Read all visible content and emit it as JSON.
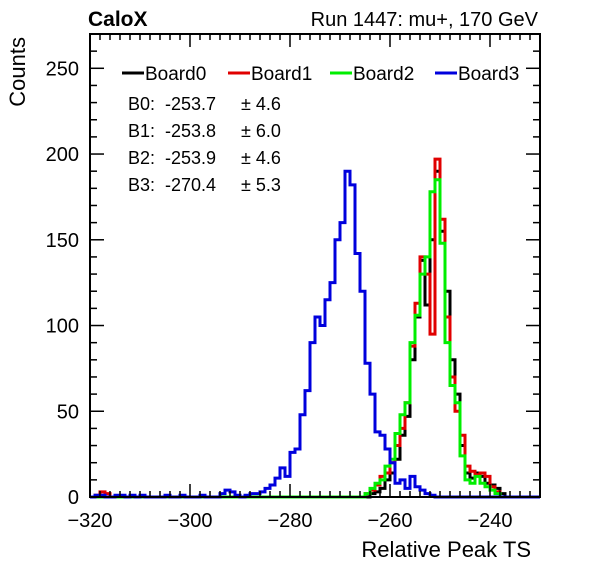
{
  "header": {
    "left_label": "CaloX",
    "right_label": "Run 1447: mu+, 170 GeV"
  },
  "chart_data": {
    "type": "line",
    "style": "step-histogram",
    "title": "",
    "xlabel": "Relative Peak TS",
    "ylabel": "Counts",
    "xlim": [
      -320,
      -230
    ],
    "ylim": [
      0,
      270
    ],
    "x_ticks": [
      -320,
      -300,
      -280,
      -260,
      -240
    ],
    "y_ticks": [
      0,
      50,
      100,
      150,
      200,
      250
    ],
    "grid": false,
    "legend_position": "top",
    "bin_width": 1,
    "series": [
      {
        "name": "Board0",
        "color": "#000000",
        "bins": [
          [
            -264,
            2
          ],
          [
            -263,
            3
          ],
          [
            -262,
            5
          ],
          [
            -261,
            10
          ],
          [
            -260,
            14
          ],
          [
            -259,
            22
          ],
          [
            -258,
            36
          ],
          [
            -257,
            47
          ],
          [
            -256,
            80
          ],
          [
            -255,
            105
          ],
          [
            -254,
            138
          ],
          [
            -253,
            112
          ],
          [
            -252,
            150
          ],
          [
            -251,
            190
          ],
          [
            -250,
            155
          ],
          [
            -249,
            120
          ],
          [
            -248,
            80
          ],
          [
            -247,
            60
          ],
          [
            -246,
            30
          ],
          [
            -245,
            14
          ],
          [
            -244,
            11
          ],
          [
            -243,
            14
          ],
          [
            -242,
            12
          ],
          [
            -241,
            8
          ],
          [
            -240,
            7
          ],
          [
            -239,
            5
          ],
          [
            -238,
            2
          ]
        ]
      },
      {
        "name": "Board1",
        "color": "#e00000",
        "bins": [
          [
            -319,
            1
          ],
          [
            -318,
            3
          ],
          [
            -317,
            2
          ],
          [
            -265,
            2
          ],
          [
            -264,
            4
          ],
          [
            -263,
            7
          ],
          [
            -262,
            12
          ],
          [
            -261,
            14
          ],
          [
            -260,
            20
          ],
          [
            -259,
            30
          ],
          [
            -258,
            40
          ],
          [
            -257,
            55
          ],
          [
            -256,
            88
          ],
          [
            -255,
            113
          ],
          [
            -254,
            140
          ],
          [
            -253,
            130
          ],
          [
            -252,
            95
          ],
          [
            -251,
            197
          ],
          [
            -250,
            162
          ],
          [
            -249,
            105
          ],
          [
            -248,
            70
          ],
          [
            -247,
            50
          ],
          [
            -246,
            36
          ],
          [
            -245,
            18
          ],
          [
            -244,
            15
          ],
          [
            -243,
            13
          ],
          [
            -242,
            14
          ],
          [
            -241,
            12
          ],
          [
            -240,
            6
          ],
          [
            -239,
            3
          ]
        ]
      },
      {
        "name": "Board2",
        "color": "#00ee00",
        "bins": [
          [
            -265,
            2
          ],
          [
            -264,
            5
          ],
          [
            -263,
            8
          ],
          [
            -262,
            10
          ],
          [
            -261,
            18
          ],
          [
            -260,
            22
          ],
          [
            -259,
            37
          ],
          [
            -258,
            48
          ],
          [
            -257,
            55
          ],
          [
            -256,
            90
          ],
          [
            -255,
            106
          ],
          [
            -254,
            130
          ],
          [
            -253,
            140
          ],
          [
            -252,
            178
          ],
          [
            -251,
            185
          ],
          [
            -250,
            148
          ],
          [
            -249,
            90
          ],
          [
            -248,
            65
          ],
          [
            -247,
            55
          ],
          [
            -246,
            24
          ],
          [
            -245,
            10
          ],
          [
            -244,
            8
          ],
          [
            -243,
            12
          ],
          [
            -242,
            8
          ],
          [
            -241,
            6
          ],
          [
            -240,
            4
          ],
          [
            -239,
            2
          ]
        ]
      },
      {
        "name": "Board3",
        "color": "#0000dd",
        "bins": [
          [
            -319,
            1
          ],
          [
            -318,
            1
          ],
          [
            -315,
            1
          ],
          [
            -314,
            1
          ],
          [
            -312,
            1
          ],
          [
            -310,
            1
          ],
          [
            -305,
            1
          ],
          [
            -302,
            1
          ],
          [
            -298,
            1
          ],
          [
            -294,
            2
          ],
          [
            -293,
            4
          ],
          [
            -292,
            3
          ],
          [
            -291,
            1
          ],
          [
            -289,
            1
          ],
          [
            -288,
            2
          ],
          [
            -287,
            2
          ],
          [
            -286,
            3
          ],
          [
            -285,
            5
          ],
          [
            -284,
            7
          ],
          [
            -283,
            11
          ],
          [
            -282,
            17
          ],
          [
            -281,
            12
          ],
          [
            -280,
            26
          ],
          [
            -279,
            28
          ],
          [
            -278,
            48
          ],
          [
            -277,
            62
          ],
          [
            -276,
            90
          ],
          [
            -275,
            105
          ],
          [
            -274,
            100
          ],
          [
            -273,
            115
          ],
          [
            -272,
            125
          ],
          [
            -271,
            150
          ],
          [
            -270,
            160
          ],
          [
            -269,
            190
          ],
          [
            -268,
            182
          ],
          [
            -267,
            142
          ],
          [
            -266,
            120
          ],
          [
            -265,
            78
          ],
          [
            -264,
            60
          ],
          [
            -263,
            38
          ],
          [
            -262,
            36
          ],
          [
            -261,
            28
          ],
          [
            -260,
            20
          ],
          [
            -259,
            8
          ],
          [
            -258,
            10
          ],
          [
            -257,
            5
          ],
          [
            -256,
            12
          ],
          [
            -255,
            6
          ],
          [
            -254,
            4
          ],
          [
            -253,
            2
          ],
          [
            -252,
            1
          ]
        ]
      }
    ],
    "annotations": [
      {
        "label": "B0:",
        "mean": "-253.7",
        "pm": "± 4.6"
      },
      {
        "label": "B1:",
        "mean": "-253.8",
        "pm": "± 6.0"
      },
      {
        "label": "B2:",
        "mean": "-253.9",
        "pm": "± 4.6"
      },
      {
        "label": "B3:",
        "mean": "-270.4",
        "pm": "± 5.3"
      }
    ]
  }
}
